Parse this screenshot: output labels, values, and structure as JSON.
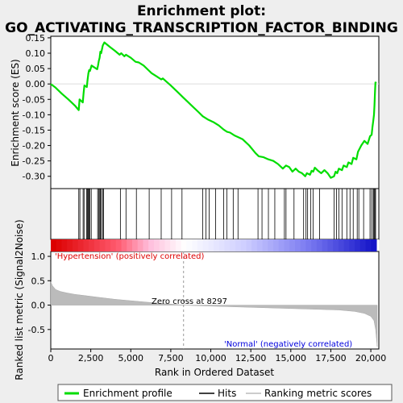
{
  "chart_data": {
    "type": "line",
    "title_line1": "Enrichment plot:",
    "title_line2": "GO_ACTIVATING_TRANSCRIPTION_FACTOR_BINDING",
    "top_ylabel": "Enrichment score (ES)",
    "bottom_ylabel": "Ranked list metric (Signal2Noise)",
    "xlabel": "Rank in Ordered Dataset",
    "xlim": [
      0,
      20500
    ],
    "top_ylim": [
      -0.34,
      0.155
    ],
    "bottom_ylim": [
      -0.9,
      1.1
    ],
    "x_ticks": [
      0,
      2500,
      5000,
      7500,
      10000,
      12500,
      15000,
      17500,
      20000
    ],
    "x_tick_labels": [
      "0",
      "2,500",
      "5,000",
      "7,500",
      "10,000",
      "12,500",
      "15,000",
      "17,500",
      "20,000"
    ],
    "top_y_ticks": [
      0.15,
      0.1,
      0.05,
      0.0,
      -0.05,
      -0.1,
      -0.15,
      -0.2,
      -0.25,
      -0.3
    ],
    "top_y_tick_labels": [
      "0.15",
      "0.10",
      "0.05",
      "0.00",
      "-0.05",
      "-0.10",
      "-0.15",
      "-0.20",
      "-0.25",
      "-0.30"
    ],
    "bottom_y_ticks": [
      1.0,
      0.5,
      0.0,
      -0.5
    ],
    "bottom_y_tick_labels": [
      "1.0",
      "0.5",
      "0.0",
      "-0.5"
    ],
    "es_curve": [
      [
        0,
        0.0
      ],
      [
        300,
        -0.012
      ],
      [
        700,
        -0.032
      ],
      [
        1100,
        -0.05
      ],
      [
        1500,
        -0.07
      ],
      [
        1750,
        -0.085
      ],
      [
        1800,
        -0.05
      ],
      [
        2000,
        -0.06
      ],
      [
        2050,
        -0.03
      ],
      [
        2100,
        -0.005
      ],
      [
        2250,
        -0.01
      ],
      [
        2300,
        0.015
      ],
      [
        2350,
        0.035
      ],
      [
        2400,
        0.045
      ],
      [
        2450,
        0.042
      ],
      [
        2550,
        0.06
      ],
      [
        2900,
        0.048
      ],
      [
        2950,
        0.06
      ],
      [
        3000,
        0.075
      ],
      [
        3050,
        0.085
      ],
      [
        3100,
        0.105
      ],
      [
        3150,
        0.1
      ],
      [
        3250,
        0.125
      ],
      [
        3350,
        0.135
      ],
      [
        3700,
        0.12
      ],
      [
        4000,
        0.108
      ],
      [
        4300,
        0.095
      ],
      [
        4400,
        0.1
      ],
      [
        4600,
        0.09
      ],
      [
        4700,
        0.095
      ],
      [
        5000,
        0.085
      ],
      [
        5300,
        0.072
      ],
      [
        5500,
        0.07
      ],
      [
        5800,
        0.06
      ],
      [
        6100,
        0.045
      ],
      [
        6300,
        0.035
      ],
      [
        6600,
        0.025
      ],
      [
        6900,
        0.015
      ],
      [
        7000,
        0.018
      ],
      [
        7500,
        -0.005
      ],
      [
        8000,
        -0.03
      ],
      [
        8300,
        -0.045
      ],
      [
        8800,
        -0.07
      ],
      [
        9200,
        -0.09
      ],
      [
        9500,
        -0.105
      ],
      [
        9800,
        -0.115
      ],
      [
        10200,
        -0.125
      ],
      [
        10500,
        -0.135
      ],
      [
        10800,
        -0.148
      ],
      [
        11000,
        -0.155
      ],
      [
        11200,
        -0.158
      ],
      [
        11500,
        -0.168
      ],
      [
        11800,
        -0.175
      ],
      [
        12000,
        -0.18
      ],
      [
        12400,
        -0.2
      ],
      [
        12800,
        -0.225
      ],
      [
        13000,
        -0.235
      ],
      [
        13300,
        -0.238
      ],
      [
        13600,
        -0.245
      ],
      [
        13900,
        -0.25
      ],
      [
        14200,
        -0.26
      ],
      [
        14500,
        -0.275
      ],
      [
        14700,
        -0.265
      ],
      [
        14900,
        -0.27
      ],
      [
        15100,
        -0.285
      ],
      [
        15300,
        -0.275
      ],
      [
        15500,
        -0.285
      ],
      [
        15700,
        -0.29
      ],
      [
        15900,
        -0.3
      ],
      [
        16000,
        -0.29
      ],
      [
        16200,
        -0.295
      ],
      [
        16300,
        -0.282
      ],
      [
        16400,
        -0.285
      ],
      [
        16500,
        -0.272
      ],
      [
        16700,
        -0.282
      ],
      [
        16900,
        -0.29
      ],
      [
        17100,
        -0.28
      ],
      [
        17300,
        -0.29
      ],
      [
        17500,
        -0.305
      ],
      [
        17700,
        -0.3
      ],
      [
        17800,
        -0.285
      ],
      [
        17900,
        -0.29
      ],
      [
        18000,
        -0.275
      ],
      [
        18200,
        -0.28
      ],
      [
        18300,
        -0.265
      ],
      [
        18500,
        -0.27
      ],
      [
        18600,
        -0.255
      ],
      [
        18800,
        -0.26
      ],
      [
        18900,
        -0.24
      ],
      [
        19100,
        -0.245
      ],
      [
        19200,
        -0.22
      ],
      [
        19400,
        -0.2
      ],
      [
        19600,
        -0.185
      ],
      [
        19800,
        -0.195
      ],
      [
        19950,
        -0.17
      ],
      [
        20050,
        -0.165
      ],
      [
        20100,
        -0.14
      ],
      [
        20150,
        -0.12
      ],
      [
        20200,
        -0.1
      ],
      [
        20230,
        -0.07
      ],
      [
        20260,
        -0.03
      ],
      [
        20290,
        0.005
      ],
      [
        20350,
        0.003
      ]
    ],
    "hits": [
      1750,
      1820,
      2020,
      2080,
      2240,
      2290,
      2340,
      2390,
      2440,
      2530,
      2930,
      2990,
      3060,
      3100,
      3160,
      3240,
      3300,
      4350,
      4700,
      5350,
      6150,
      6900,
      7550,
      8200,
      9500,
      9700,
      9900,
      10300,
      10800,
      11000,
      11400,
      11700,
      12950,
      13200,
      13600,
      14000,
      14600,
      14700,
      15200,
      15800,
      15950,
      16050,
      16250,
      16400,
      16800,
      17700,
      17850,
      18000,
      18200,
      18500,
      18700,
      18900,
      19150,
      19250,
      19550,
      19950,
      20050,
      20150,
      20200,
      20250,
      20300
    ],
    "ranking_metric": [
      [
        0,
        0.48
      ],
      [
        100,
        0.4
      ],
      [
        300,
        0.32
      ],
      [
        600,
        0.28
      ],
      [
        1000,
        0.25
      ],
      [
        1500,
        0.22
      ],
      [
        2000,
        0.2
      ],
      [
        3000,
        0.16
      ],
      [
        4000,
        0.12
      ],
      [
        5000,
        0.09
      ],
      [
        6000,
        0.06
      ],
      [
        7000,
        0.035
      ],
      [
        8297,
        0.0
      ],
      [
        9000,
        -0.01
      ],
      [
        10000,
        -0.02
      ],
      [
        11000,
        -0.03
      ],
      [
        12000,
        -0.04
      ],
      [
        13000,
        -0.05
      ],
      [
        14000,
        -0.06
      ],
      [
        15000,
        -0.07
      ],
      [
        16000,
        -0.08
      ],
      [
        17000,
        -0.09
      ],
      [
        18000,
        -0.1
      ],
      [
        19000,
        -0.13
      ],
      [
        19600,
        -0.17
      ],
      [
        20000,
        -0.23
      ],
      [
        20200,
        -0.32
      ],
      [
        20300,
        -0.5
      ],
      [
        20400,
        -0.85
      ]
    ],
    "zero_cross_rank": 8297,
    "zero_cross_label": "Zero cross at 8297",
    "positive_label": "'Hypertension' (positively correlated)",
    "negative_label": "'Normal' (negatively correlated)",
    "legend": [
      {
        "label": "Enrichment profile",
        "color": "#00dd00"
      },
      {
        "label": "Hits",
        "color": "#000000"
      },
      {
        "label": "Ranking metric scores",
        "color": "#bbbbbb"
      }
    ],
    "colors": {
      "es": "#00dd00",
      "hits": "#000000",
      "metric": "#bbbbbb",
      "positive_text": "#dd0000",
      "negative_text": "#0000dd",
      "zero_line": "#999999"
    }
  }
}
